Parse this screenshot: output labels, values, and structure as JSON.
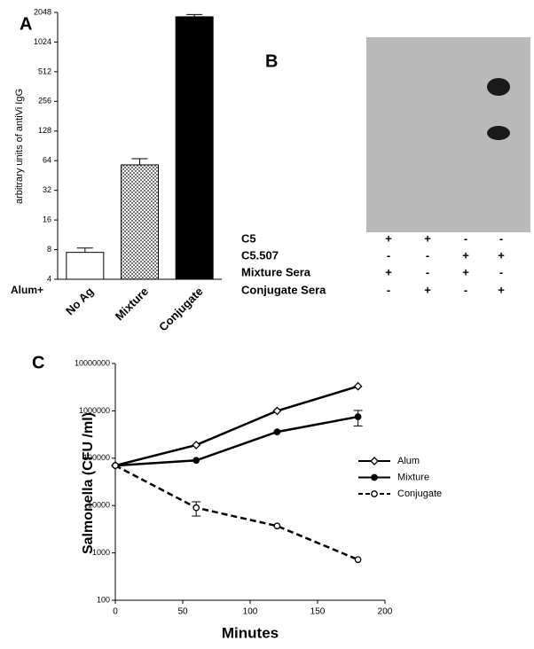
{
  "chart_data": [
    {
      "type": "bar",
      "panel": "A",
      "ylabel": "arbitrary units of antiVi IgG",
      "group_label": "Alum+",
      "categories": [
        "No Ag",
        "Mixture",
        "Conjugate"
      ],
      "values": [
        7.5,
        58,
        1850
      ],
      "errors": [
        0.8,
        9,
        100
      ],
      "ylim": [
        4,
        2048
      ],
      "yticks": [
        4,
        8,
        16,
        32,
        64,
        128,
        256,
        512,
        1024,
        2048
      ],
      "log_base": 2
    },
    {
      "type": "line",
      "panel": "C",
      "xlabel": "Minutes",
      "ylabel": "Salmonella (CFU /ml)",
      "x": [
        0,
        60,
        120,
        180
      ],
      "xlim": [
        0,
        200
      ],
      "xticks": [
        0,
        50,
        100,
        150,
        200
      ],
      "ylim": [
        100,
        10000000
      ],
      "yticks": [
        100,
        1000,
        10000,
        100000,
        1000000,
        10000000
      ],
      "log_base": 10,
      "legend": "right",
      "series": [
        {
          "name": "Alum",
          "color": "#000000",
          "marker": "diamond",
          "filled": false,
          "dashed": false,
          "values": [
            70000,
            190000,
            1000000,
            3300000
          ],
          "errors": [
            null,
            null,
            null,
            null
          ]
        },
        {
          "name": "Mixture",
          "color": "#000000",
          "marker": "circle",
          "filled": true,
          "dashed": false,
          "values": [
            70000,
            90000,
            360000,
            750000
          ],
          "errors": [
            null,
            null,
            null,
            270000
          ]
        },
        {
          "name": "Conjugate",
          "color": "#000000",
          "marker": "circle",
          "filled": false,
          "dashed": true,
          "values": [
            70000,
            9000,
            3700,
            720
          ],
          "errors": [
            null,
            3000,
            null,
            null
          ]
        }
      ]
    }
  ],
  "blot": {
    "panel": "B",
    "rows": [
      {
        "label": "C5",
        "signs": [
          "+",
          "+",
          "-",
          "-"
        ]
      },
      {
        "label": "C5.507",
        "signs": [
          "-",
          "-",
          "+",
          "+"
        ]
      },
      {
        "label": "Mixture Sera",
        "signs": [
          "+",
          "-",
          "+",
          "-"
        ]
      },
      {
        "label": "Conjugate Sera",
        "signs": [
          "-",
          "+",
          "-",
          "+"
        ]
      }
    ]
  }
}
